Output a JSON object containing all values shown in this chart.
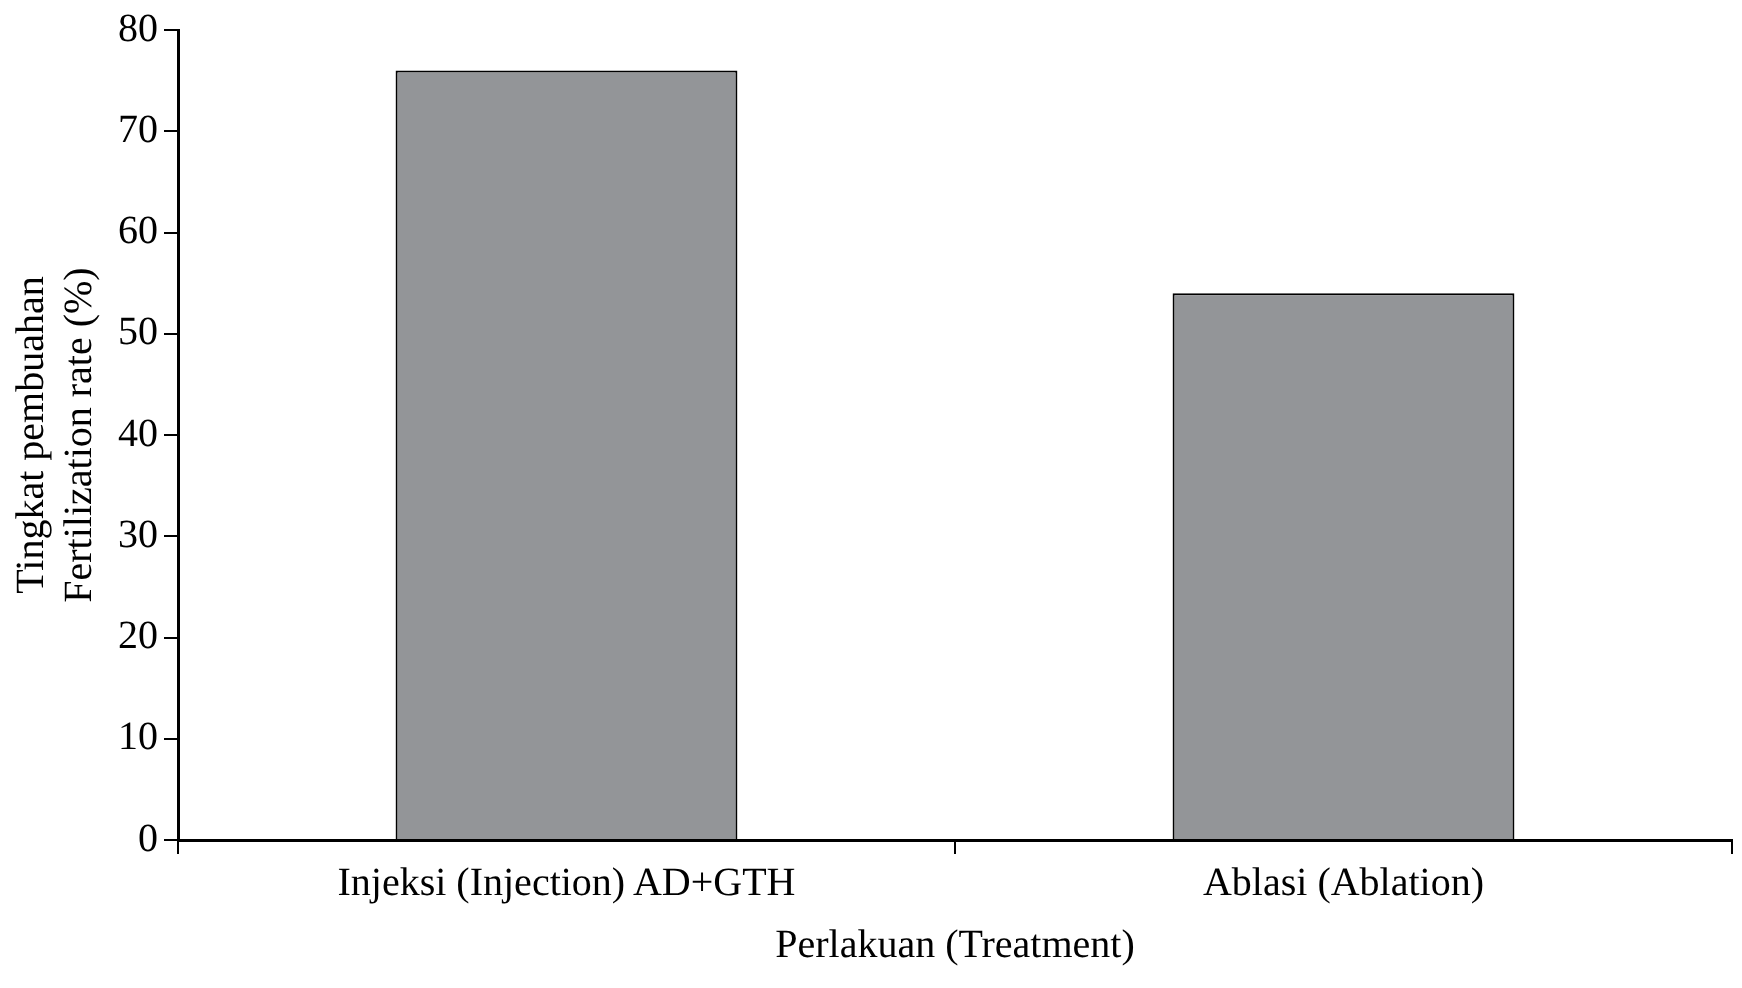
{
  "chart_data": {
    "type": "bar",
    "categories": [
      "Injeksi (Injection) AD+GTH",
      "Ablasi (Ablation)"
    ],
    "values": [
      76,
      54
    ],
    "color": "#939598",
    "ylim": [
      0,
      80
    ],
    "yticks": [
      0,
      10,
      20,
      30,
      40,
      50,
      60,
      70,
      80
    ],
    "ylabel": "Tingkat pembuahan\nFertilization rate (%)",
    "xlabel": "Perlakuan (Treatment)",
    "grid": false,
    "legend": false
  }
}
